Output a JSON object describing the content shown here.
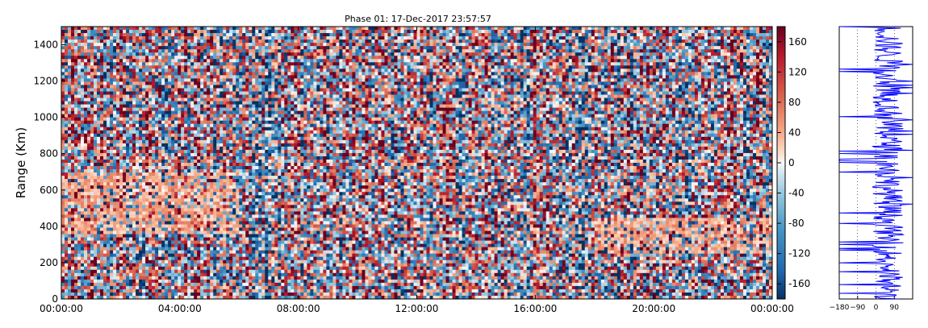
{
  "chart_data": [
    {
      "type": "heatmap",
      "title": "Phase 01: 17-Dec-2017 23:57:57",
      "xlabel": "",
      "ylabel": "Range (Km)",
      "x_ticks": [
        "00:00:00",
        "04:00:00",
        "08:00:00",
        "12:00:00",
        "16:00:00",
        "20:00:00",
        "00:00:00"
      ],
      "xlim_hours": [
        0,
        24
      ],
      "y_ticks": [
        0,
        200,
        400,
        600,
        800,
        1000,
        1200,
        1400
      ],
      "ylim": [
        0,
        1500
      ],
      "colorbar": {
        "ticks": [
          160,
          120,
          80,
          40,
          0,
          -40,
          -80,
          -120,
          -160
        ],
        "range": [
          -180,
          180
        ],
        "colormap": "RdBu_r"
      },
      "colors": {
        "low": "#053061",
        "mid": "#f7f7f7",
        "high": "#67001f"
      },
      "features": [
        {
          "description": "band",
          "time_hours": [
            0,
            6
          ],
          "range_km": [
            350,
            700
          ],
          "value": 40
        },
        {
          "description": "band",
          "time_hours": [
            18,
            24
          ],
          "range_km": [
            250,
            450
          ],
          "value": 40
        }
      ]
    },
    {
      "type": "line",
      "x_ticks": [
        -180,
        -90,
        0,
        90
      ],
      "xlim": [
        -180,
        180
      ],
      "ylim": [
        0,
        1500
      ],
      "series_color": "#0000ff"
    }
  ]
}
